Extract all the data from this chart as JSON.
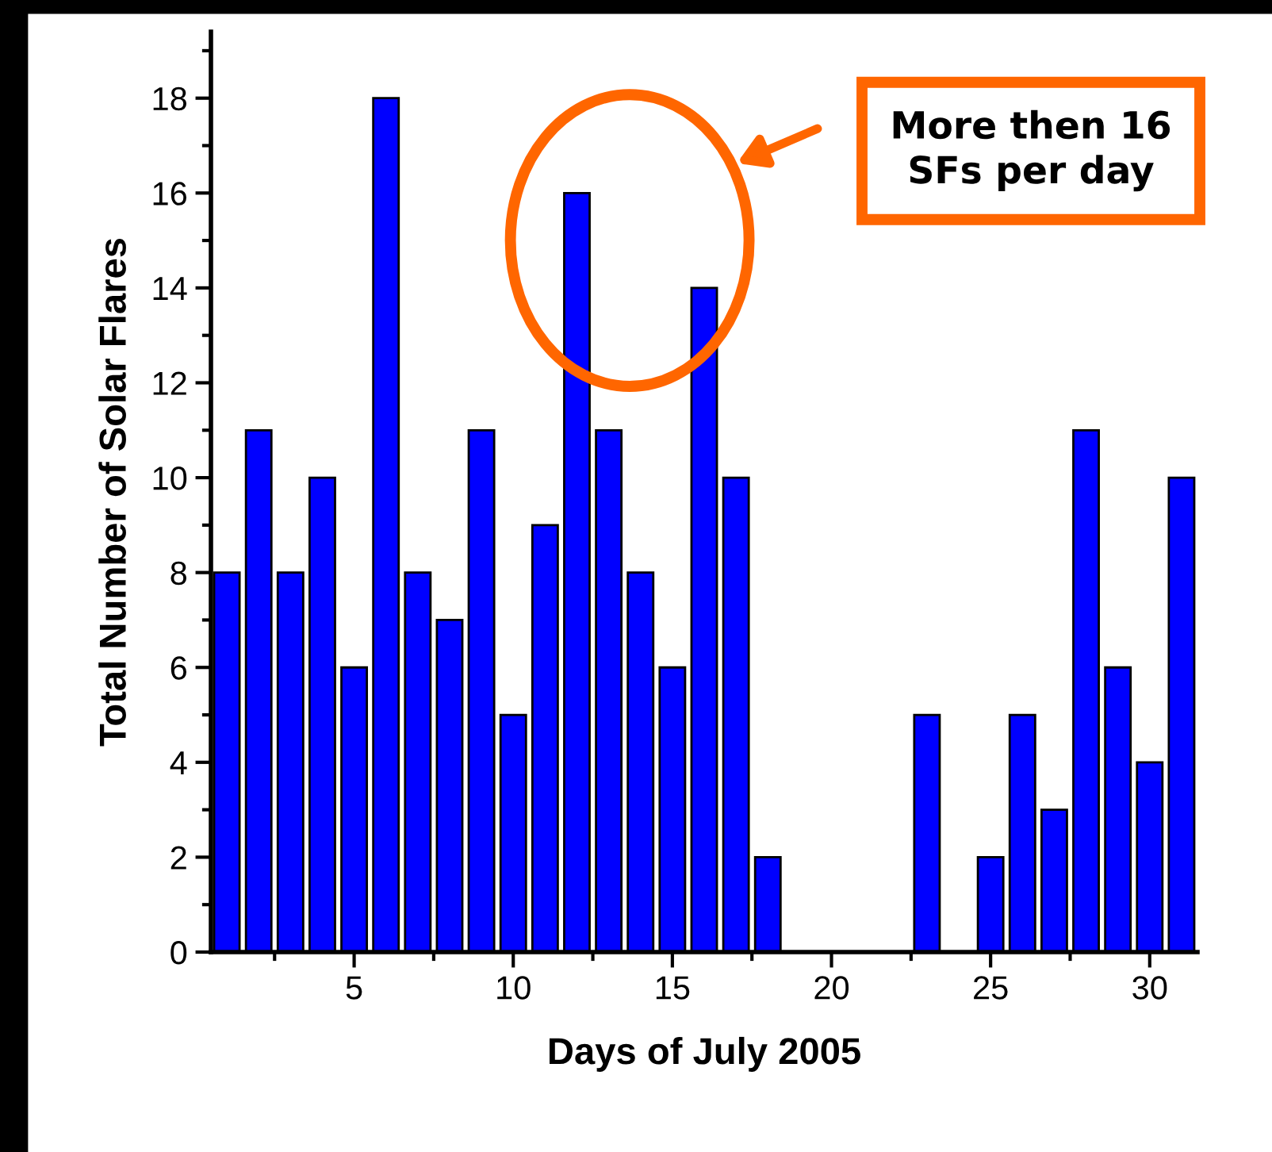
{
  "chart_data": {
    "type": "bar",
    "xlabel": "Days of July 2005",
    "ylabel": "Total Number of Solar Flares",
    "x": [
      1,
      2,
      3,
      4,
      5,
      6,
      7,
      8,
      9,
      10,
      11,
      12,
      13,
      14,
      15,
      16,
      17,
      18,
      19,
      20,
      21,
      22,
      23,
      24,
      25,
      26,
      27,
      28,
      29,
      30,
      31
    ],
    "values": [
      8,
      11,
      8,
      10,
      6,
      18,
      8,
      7,
      11,
      5,
      9,
      16,
      11,
      8,
      6,
      14,
      10,
      2,
      0,
      0,
      0,
      0,
      5,
      0,
      2,
      5,
      3,
      11,
      6,
      4,
      10
    ],
    "color": "#0000ff",
    "xlim": [
      0.5,
      31.5
    ],
    "xticks": [
      5,
      10,
      15,
      20,
      25,
      30
    ],
    "ylim": [
      0,
      19.4
    ],
    "yticks": [
      0,
      2,
      4,
      6,
      8,
      10,
      12,
      14,
      16,
      18
    ],
    "grid": false,
    "annotations": [
      "More then 16\nSFs per day"
    ]
  }
}
